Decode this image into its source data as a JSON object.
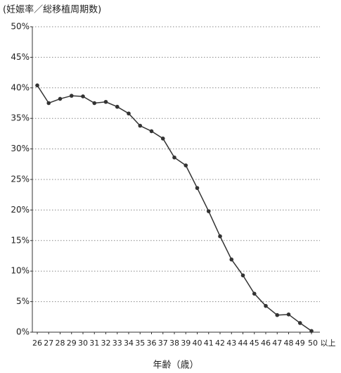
{
  "chart_data": {
    "type": "line",
    "title": "(妊娠率／総移植周期数)",
    "x_label": "年齢（歳）",
    "categories": [
      "26",
      "27",
      "28",
      "29",
      "30",
      "31",
      "32",
      "33",
      "34",
      "35",
      "36",
      "37",
      "38",
      "39",
      "40",
      "41",
      "42",
      "43",
      "44",
      "45",
      "46",
      "47",
      "48",
      "49",
      "50 以上"
    ],
    "series": [
      {
        "name": "妊娠率",
        "color": "#333333",
        "values": [
          40.4,
          37.5,
          38.2,
          38.7,
          38.6,
          37.5,
          37.7,
          36.9,
          35.8,
          33.8,
          32.9,
          31.7,
          28.6,
          27.3,
          23.6,
          19.8,
          15.7,
          11.9,
          9.3,
          6.3,
          4.3,
          2.8,
          2.9,
          1.5,
          0.2
        ]
      }
    ],
    "ylim": [
      0,
      50
    ],
    "yticks": [
      {
        "value": 0,
        "label": "0%"
      },
      {
        "value": 5,
        "label": "5%"
      },
      {
        "value": 10,
        "label": "10%"
      },
      {
        "value": 15,
        "label": "15%"
      },
      {
        "value": 20,
        "label": "20%"
      },
      {
        "value": 25,
        "label": "25%"
      },
      {
        "value": 30,
        "label": "30%"
      },
      {
        "value": 35,
        "label": "35%"
      },
      {
        "value": 40,
        "label": "40%"
      },
      {
        "value": 45,
        "label": "45%"
      },
      {
        "value": 50,
        "label": "50%"
      }
    ],
    "grid": true
  }
}
